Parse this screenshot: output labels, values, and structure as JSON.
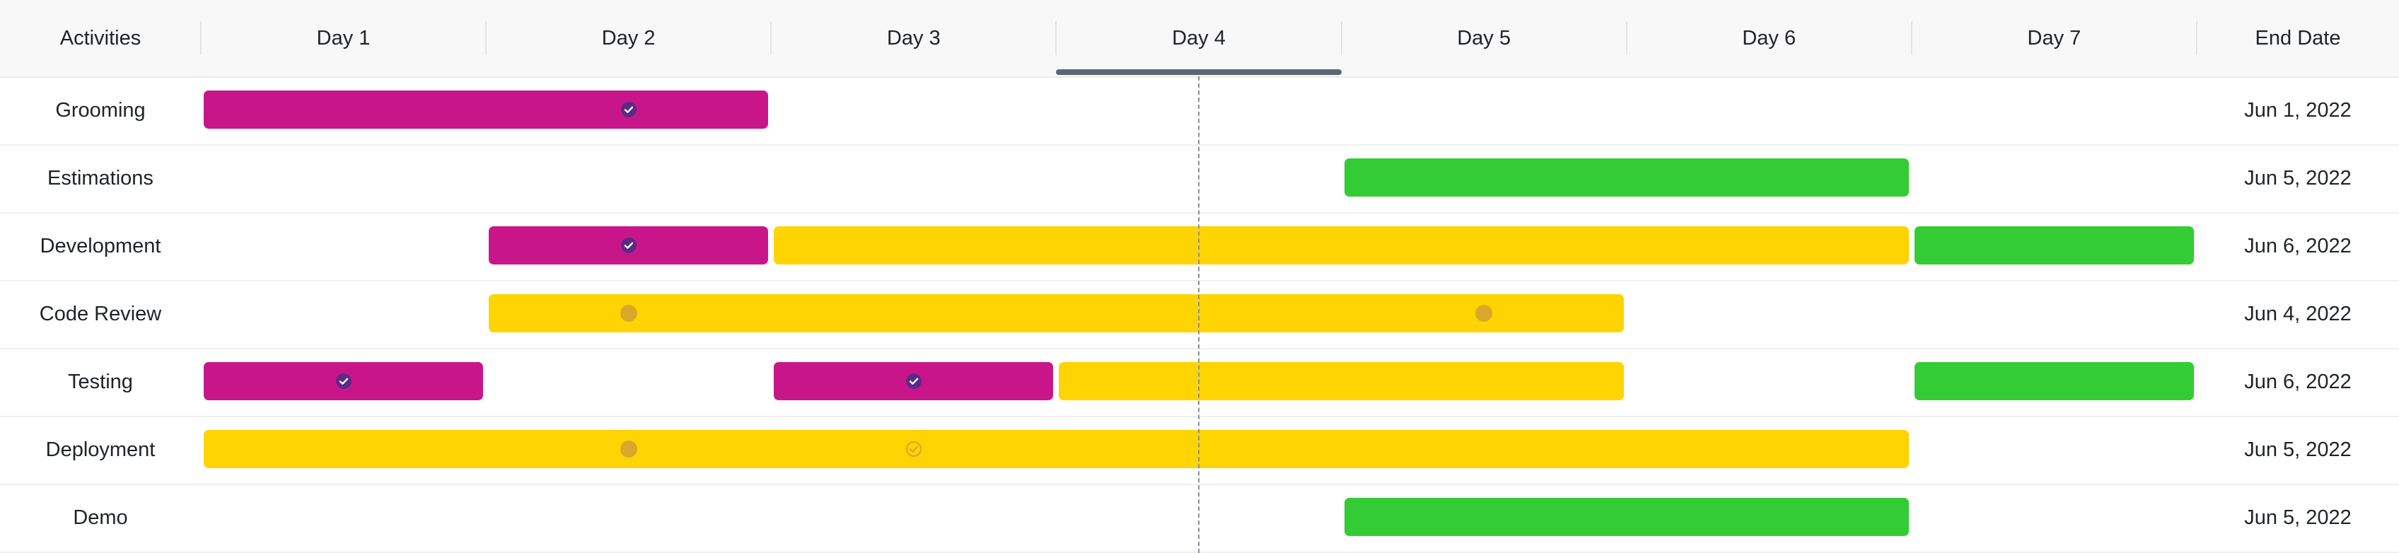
{
  "header": {
    "activities_label": "Activities",
    "days": [
      "Day 1",
      "Day 2",
      "Day 3",
      "Day 4",
      "Day 5",
      "Day 6",
      "Day 7"
    ],
    "end_date_label": "End Date",
    "active_day_index": 3
  },
  "colors": {
    "done": "#c8168a",
    "in_progress": "#ffd400",
    "planned": "#34cc34",
    "marker_done": "#5b2a86",
    "marker_progress": "#d9a82a"
  },
  "rows": [
    {
      "activity": "Grooming",
      "end_date": "Jun 1, 2022",
      "bars": [
        {
          "status": "done",
          "start": 1,
          "end": 2
        }
      ],
      "markers": [
        {
          "day": 2,
          "status": "done"
        }
      ]
    },
    {
      "activity": "Estimations",
      "end_date": "Jun 5, 2022",
      "bars": [
        {
          "status": "planned",
          "start": 5,
          "end": 6
        }
      ],
      "markers": []
    },
    {
      "activity": "Development",
      "end_date": "Jun 6, 2022",
      "bars": [
        {
          "status": "done",
          "start": 2,
          "end": 2
        },
        {
          "status": "in_progress",
          "start": 3,
          "end": 6
        },
        {
          "status": "planned",
          "start": 7,
          "end": 7
        }
      ],
      "markers": [
        {
          "day": 2,
          "status": "done"
        }
      ]
    },
    {
      "activity": "Code Review",
      "end_date": "Jun 4, 2022",
      "bars": [
        {
          "status": "in_progress",
          "start": 2,
          "end": 5
        }
      ],
      "markers": [
        {
          "day": 2,
          "status": "in_progress"
        },
        {
          "day": 5,
          "status": "in_progress"
        }
      ]
    },
    {
      "activity": "Testing",
      "end_date": "Jun 6, 2022",
      "bars": [
        {
          "status": "done",
          "start": 1,
          "end": 1
        },
        {
          "status": "done",
          "start": 3,
          "end": 3
        },
        {
          "status": "in_progress",
          "start": 4,
          "end": 5
        },
        {
          "status": "planned",
          "start": 7,
          "end": 7
        }
      ],
      "markers": [
        {
          "day": 1,
          "status": "done"
        },
        {
          "day": 3,
          "status": "done"
        }
      ]
    },
    {
      "activity": "Deployment",
      "end_date": "Jun 5, 2022",
      "bars": [
        {
          "status": "in_progress",
          "start": 1,
          "end": 6
        }
      ],
      "markers": [
        {
          "day": 2,
          "status": "in_progress"
        },
        {
          "day": 3,
          "status": "in_progress_check"
        }
      ]
    },
    {
      "activity": "Demo",
      "end_date": "Jun 5, 2022",
      "bars": [
        {
          "status": "planned",
          "start": 5,
          "end": 6
        }
      ],
      "markers": []
    }
  ]
}
